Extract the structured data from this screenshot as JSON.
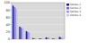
{
  "chart_data": {
    "type": "bar",
    "categories": [
      null,
      null,
      null,
      null,
      null,
      null,
      null,
      null
    ],
    "series": [
      {
        "name": "Series 1",
        "color": "#1c1c8c",
        "values": [
          92,
          34,
          22,
          3,
          2,
          5,
          2,
          6
        ]
      },
      {
        "name": "Series 2",
        "color": "#6a5acd",
        "values": [
          88,
          32,
          20,
          2,
          2,
          4,
          2,
          5
        ]
      },
      {
        "name": "Series 3",
        "color": "#9999ff",
        "values": [
          85,
          30,
          18,
          2,
          1,
          4,
          1,
          5
        ]
      },
      {
        "name": "Series 4",
        "color": "#c8c8f0",
        "values": [
          80,
          28,
          17,
          1,
          1,
          3,
          1,
          4
        ]
      }
    ],
    "ylim": [
      0,
      100
    ],
    "yticks": [
      0,
      20,
      40,
      60,
      80,
      100
    ],
    "grid": true,
    "legend": "upper right"
  }
}
